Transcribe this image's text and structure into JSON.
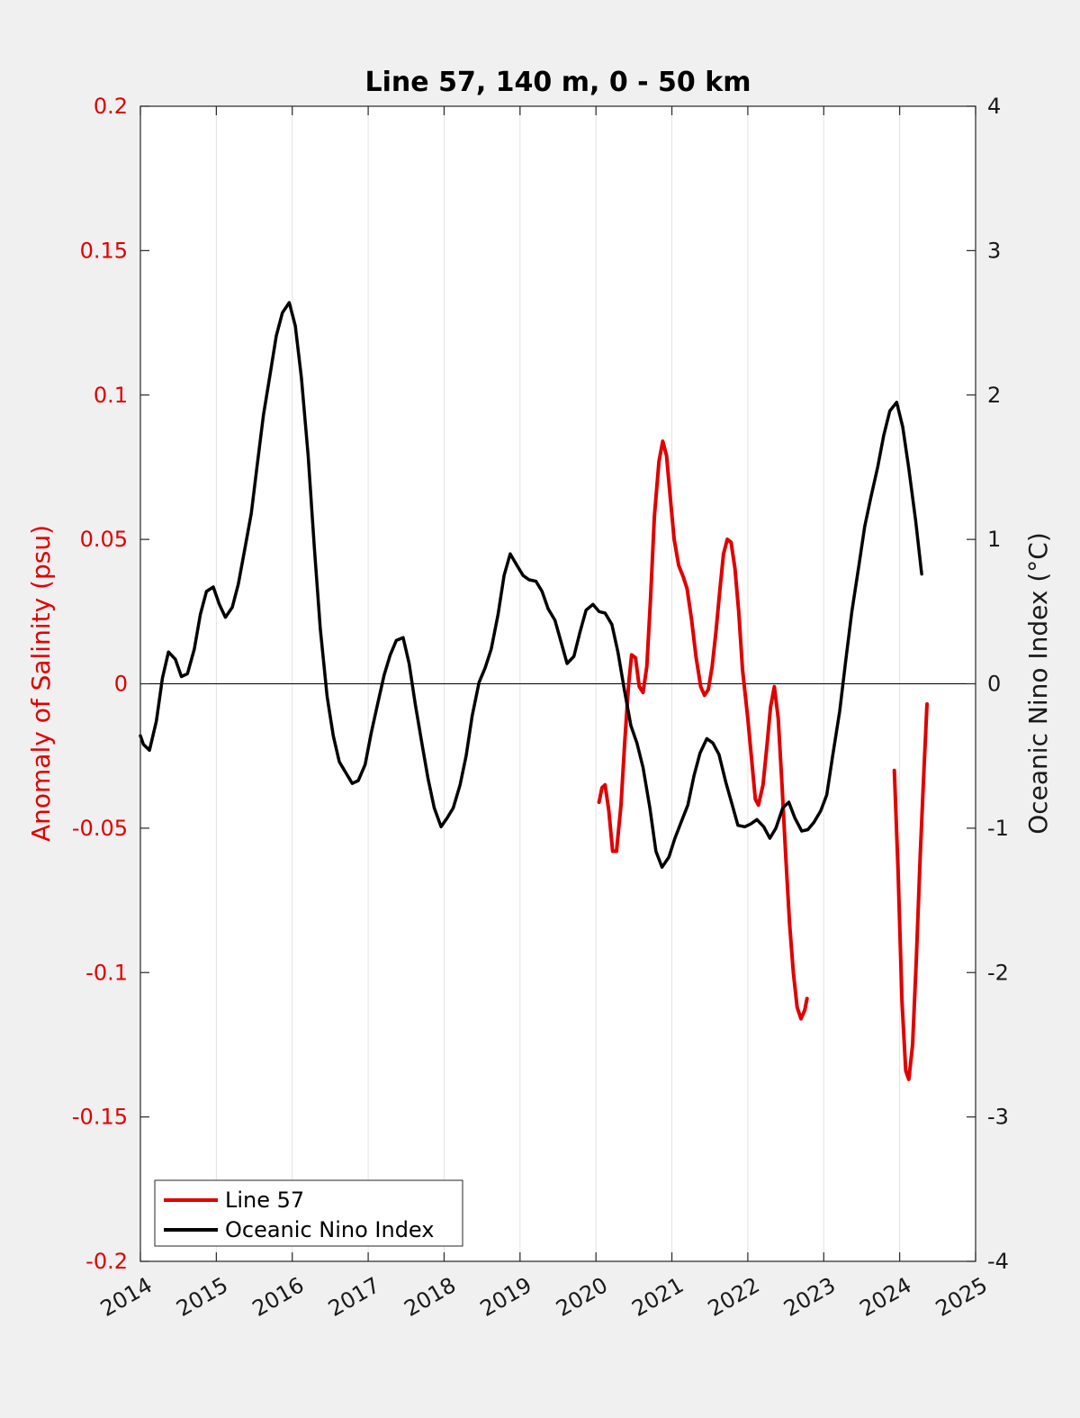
{
  "chart_data": {
    "type": "line",
    "title": "Line 57, 140 m, 0 - 50 km",
    "xlim": [
      2014,
      2025
    ],
    "x_ticks": [
      "2014",
      "2015",
      "2016",
      "2017",
      "2018",
      "2019",
      "2020",
      "2021",
      "2022",
      "2023",
      "2024",
      "2025"
    ],
    "y_left": {
      "label": "Anomaly of Salinity (psu)",
      "lim": [
        -0.2,
        0.2
      ],
      "ticks": [
        "-0.2",
        "-0.15",
        "-0.1",
        "-0.05",
        "0",
        "0.05",
        "0.1",
        "0.15",
        "0.2"
      ],
      "color": "#e00000"
    },
    "y_right": {
      "label": "Oceanic Nino Index (°C)",
      "lim": [
        -4,
        4
      ],
      "ticks": [
        "-4",
        "-3",
        "-2",
        "-1",
        "0",
        "1",
        "2",
        "3",
        "4"
      ],
      "color": "#000000"
    },
    "grid": "vertical",
    "legend": {
      "placement": "bottom-left",
      "entries": [
        {
          "label": "Line 57",
          "color": "#e00000"
        },
        {
          "label": "Oceanic Nino Index",
          "color": "#000000"
        }
      ]
    },
    "series": [
      {
        "name": "Line 57",
        "axis": "left",
        "color": "#e00000",
        "segments": [
          [
            [
              2020.04,
              -0.041
            ],
            [
              2020.08,
              -0.036
            ],
            [
              2020.12,
              -0.035
            ],
            [
              2020.17,
              -0.044
            ],
            [
              2020.22,
              -0.058
            ],
            [
              2020.27,
              -0.058
            ],
            [
              2020.33,
              -0.042
            ],
            [
              2020.38,
              -0.02
            ],
            [
              2020.43,
              0.0
            ],
            [
              2020.47,
              0.01
            ],
            [
              2020.52,
              0.009
            ],
            [
              2020.57,
              -0.001
            ],
            [
              2020.62,
              -0.003
            ],
            [
              2020.67,
              0.006
            ],
            [
              2020.72,
              0.03
            ],
            [
              2020.77,
              0.058
            ],
            [
              2020.83,
              0.077
            ],
            [
              2020.88,
              0.084
            ],
            [
              2020.93,
              0.079
            ],
            [
              2020.98,
              0.064
            ],
            [
              2021.03,
              0.05
            ],
            [
              2021.09,
              0.041
            ],
            [
              2021.15,
              0.037
            ],
            [
              2021.2,
              0.033
            ],
            [
              2021.26,
              0.022
            ],
            [
              2021.32,
              0.009
            ],
            [
              2021.38,
              -0.001
            ],
            [
              2021.43,
              -0.004
            ],
            [
              2021.48,
              -0.002
            ],
            [
              2021.53,
              0.006
            ],
            [
              2021.58,
              0.018
            ],
            [
              2021.63,
              0.032
            ],
            [
              2021.68,
              0.045
            ],
            [
              2021.73,
              0.05
            ],
            [
              2021.78,
              0.049
            ],
            [
              2021.83,
              0.04
            ],
            [
              2021.88,
              0.025
            ],
            [
              2021.93,
              0.005
            ],
            [
              2022.0,
              -0.012
            ],
            [
              2022.05,
              -0.026
            ],
            [
              2022.1,
              -0.04
            ],
            [
              2022.14,
              -0.042
            ],
            [
              2022.2,
              -0.035
            ],
            [
              2022.25,
              -0.022
            ],
            [
              2022.3,
              -0.008
            ],
            [
              2022.35,
              -0.001
            ],
            [
              2022.4,
              -0.012
            ],
            [
              2022.45,
              -0.035
            ],
            [
              2022.5,
              -0.06
            ],
            [
              2022.55,
              -0.083
            ],
            [
              2022.6,
              -0.1
            ],
            [
              2022.65,
              -0.112
            ],
            [
              2022.7,
              -0.116
            ],
            [
              2022.75,
              -0.113
            ],
            [
              2022.78,
              -0.109
            ]
          ],
          [
            [
              2023.93,
              -0.03
            ],
            [
              2023.98,
              -0.065
            ],
            [
              2024.03,
              -0.11
            ],
            [
              2024.08,
              -0.134
            ],
            [
              2024.12,
              -0.137
            ],
            [
              2024.17,
              -0.125
            ],
            [
              2024.22,
              -0.095
            ],
            [
              2024.27,
              -0.06
            ],
            [
              2024.32,
              -0.03
            ],
            [
              2024.36,
              -0.007
            ]
          ]
        ]
      },
      {
        "name": "Oceanic Nino Index",
        "axis": "right",
        "color": "#000000",
        "points": [
          [
            2014.0,
            -0.36
          ],
          [
            2014.04,
            -0.42
          ],
          [
            2014.12,
            -0.46
          ],
          [
            2014.21,
            -0.26
          ],
          [
            2014.29,
            0.04
          ],
          [
            2014.37,
            0.22
          ],
          [
            2014.46,
            0.17
          ],
          [
            2014.54,
            0.05
          ],
          [
            2014.62,
            0.07
          ],
          [
            2014.71,
            0.24
          ],
          [
            2014.79,
            0.48
          ],
          [
            2014.87,
            0.64
          ],
          [
            2014.96,
            0.67
          ],
          [
            2015.04,
            0.55
          ],
          [
            2015.12,
            0.46
          ],
          [
            2015.21,
            0.53
          ],
          [
            2015.29,
            0.69
          ],
          [
            2015.37,
            0.92
          ],
          [
            2015.46,
            1.18
          ],
          [
            2015.54,
            1.52
          ],
          [
            2015.62,
            1.86
          ],
          [
            2015.71,
            2.15
          ],
          [
            2015.79,
            2.41
          ],
          [
            2015.87,
            2.57
          ],
          [
            2015.96,
            2.64
          ],
          [
            2016.04,
            2.48
          ],
          [
            2016.12,
            2.12
          ],
          [
            2016.21,
            1.58
          ],
          [
            2016.29,
            0.95
          ],
          [
            2016.37,
            0.38
          ],
          [
            2016.46,
            -0.09
          ],
          [
            2016.54,
            -0.36
          ],
          [
            2016.62,
            -0.54
          ],
          [
            2016.71,
            -0.62
          ],
          [
            2016.79,
            -0.69
          ],
          [
            2016.87,
            -0.67
          ],
          [
            2016.96,
            -0.56
          ],
          [
            2017.04,
            -0.34
          ],
          [
            2017.12,
            -0.15
          ],
          [
            2017.21,
            0.06
          ],
          [
            2017.29,
            0.2
          ],
          [
            2017.37,
            0.3
          ],
          [
            2017.46,
            0.32
          ],
          [
            2017.54,
            0.14
          ],
          [
            2017.62,
            -0.14
          ],
          [
            2017.71,
            -0.42
          ],
          [
            2017.79,
            -0.66
          ],
          [
            2017.87,
            -0.86
          ],
          [
            2017.96,
            -0.99
          ],
          [
            2018.04,
            -0.93
          ],
          [
            2018.12,
            -0.86
          ],
          [
            2018.21,
            -0.7
          ],
          [
            2018.29,
            -0.5
          ],
          [
            2018.37,
            -0.22
          ],
          [
            2018.46,
            0.01
          ],
          [
            2018.54,
            0.11
          ],
          [
            2018.62,
            0.24
          ],
          [
            2018.71,
            0.48
          ],
          [
            2018.79,
            0.75
          ],
          [
            2018.87,
            0.9
          ],
          [
            2018.96,
            0.82
          ],
          [
            2019.04,
            0.75
          ],
          [
            2019.12,
            0.72
          ],
          [
            2019.21,
            0.71
          ],
          [
            2019.29,
            0.64
          ],
          [
            2019.37,
            0.52
          ],
          [
            2019.46,
            0.44
          ],
          [
            2019.54,
            0.29
          ],
          [
            2019.62,
            0.14
          ],
          [
            2019.71,
            0.19
          ],
          [
            2019.79,
            0.36
          ],
          [
            2019.87,
            0.51
          ],
          [
            2019.96,
            0.55
          ],
          [
            2020.04,
            0.5
          ],
          [
            2020.12,
            0.49
          ],
          [
            2020.21,
            0.41
          ],
          [
            2020.29,
            0.22
          ],
          [
            2020.37,
            -0.03
          ],
          [
            2020.46,
            -0.29
          ],
          [
            2020.54,
            -0.41
          ],
          [
            2020.62,
            -0.58
          ],
          [
            2020.71,
            -0.86
          ],
          [
            2020.79,
            -1.16
          ],
          [
            2020.87,
            -1.27
          ],
          [
            2020.96,
            -1.2
          ],
          [
            2021.04,
            -1.07
          ],
          [
            2021.12,
            -0.96
          ],
          [
            2021.21,
            -0.84
          ],
          [
            2021.29,
            -0.64
          ],
          [
            2021.37,
            -0.48
          ],
          [
            2021.46,
            -0.38
          ],
          [
            2021.54,
            -0.41
          ],
          [
            2021.62,
            -0.49
          ],
          [
            2021.71,
            -0.68
          ],
          [
            2021.79,
            -0.83
          ],
          [
            2021.87,
            -0.98
          ],
          [
            2021.96,
            -0.99
          ],
          [
            2022.04,
            -0.97
          ],
          [
            2022.12,
            -0.94
          ],
          [
            2022.21,
            -0.99
          ],
          [
            2022.29,
            -1.07
          ],
          [
            2022.37,
            -1.0
          ],
          [
            2022.46,
            -0.86
          ],
          [
            2022.54,
            -0.82
          ],
          [
            2022.62,
            -0.93
          ],
          [
            2022.71,
            -1.02
          ],
          [
            2022.79,
            -1.01
          ],
          [
            2022.87,
            -0.96
          ],
          [
            2022.96,
            -0.88
          ],
          [
            2023.04,
            -0.77
          ],
          [
            2023.12,
            -0.49
          ],
          [
            2023.21,
            -0.19
          ],
          [
            2023.29,
            0.16
          ],
          [
            2023.37,
            0.5
          ],
          [
            2023.46,
            0.81
          ],
          [
            2023.54,
            1.09
          ],
          [
            2023.62,
            1.29
          ],
          [
            2023.71,
            1.5
          ],
          [
            2023.79,
            1.72
          ],
          [
            2023.87,
            1.89
          ],
          [
            2023.96,
            1.95
          ],
          [
            2024.04,
            1.78
          ],
          [
            2024.12,
            1.49
          ],
          [
            2024.21,
            1.13
          ],
          [
            2024.29,
            0.76
          ]
        ]
      }
    ]
  }
}
